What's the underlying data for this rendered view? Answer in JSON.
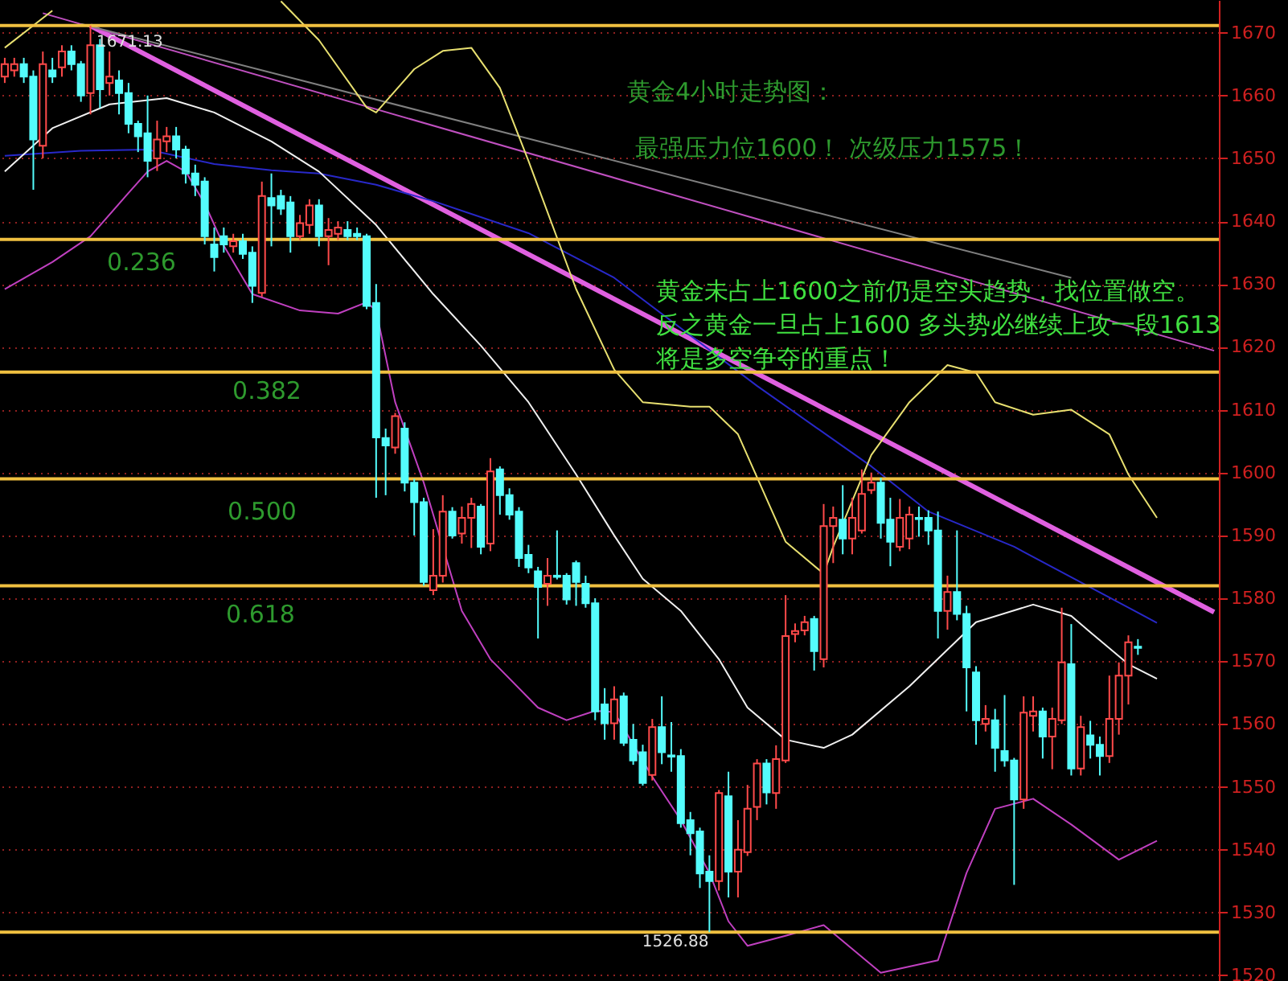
{
  "chart_data": {
    "type": "candlestick",
    "categories": [
      null,
      null,
      null,
      null,
      null,
      null,
      null,
      null,
      null,
      null,
      null,
      null,
      null,
      null,
      null,
      null,
      null,
      null,
      null,
      null,
      null,
      null,
      null,
      null,
      null,
      null,
      null,
      null,
      null,
      null,
      null,
      null,
      null,
      null,
      null,
      null,
      null,
      null,
      null,
      null,
      null,
      null,
      null,
      null,
      null,
      null,
      null,
      null,
      null,
      null,
      null,
      null,
      null,
      null,
      null,
      null,
      null,
      null,
      null,
      null,
      null,
      null,
      null,
      null,
      null,
      null,
      null,
      null,
      null,
      null,
      null,
      null,
      null,
      null,
      null,
      null,
      null,
      null,
      null,
      null,
      null,
      null,
      null,
      null,
      null,
      null,
      null,
      null,
      null,
      null,
      null,
      null,
      null,
      null,
      null,
      null,
      null,
      null,
      null,
      null,
      null,
      null,
      null,
      null,
      null,
      null,
      null,
      null,
      null,
      null,
      null,
      null,
      null,
      null,
      null,
      null,
      null,
      null,
      null,
      null,
      null,
      null,
      null,
      null,
      null,
      null,
      null,
      null
    ],
    "ohlc": [
      [
        1663,
        1666,
        1662,
        1665
      ],
      [
        1664,
        1666,
        1663,
        1665
      ],
      [
        1665,
        1666,
        1662,
        1663
      ],
      [
        1663,
        1664,
        1645,
        1653
      ],
      [
        1652,
        1667,
        1650,
        1665
      ],
      [
        1664,
        1666,
        1662,
        1663
      ],
      [
        1664.5,
        1668,
        1663,
        1667
      ],
      [
        1667,
        1668,
        1664,
        1665
      ],
      [
        1665,
        1665.5,
        1659,
        1660
      ],
      [
        1660.4,
        1671.13,
        1657,
        1668
      ],
      [
        1668,
        1669,
        1658,
        1661
      ],
      [
        1662,
        1667,
        1660,
        1663
      ],
      [
        1662.4,
        1664,
        1657,
        1660.4
      ],
      [
        1660.4,
        1662,
        1654,
        1655.5
      ],
      [
        1655.5,
        1656,
        1651,
        1653.5
      ],
      [
        1654,
        1660,
        1647,
        1649.6
      ],
      [
        1650,
        1656,
        1648,
        1653
      ],
      [
        1652.7,
        1655,
        1651,
        1653.5
      ],
      [
        1653.5,
        1655,
        1650,
        1651.4
      ],
      [
        1651.4,
        1652,
        1646,
        1647.6
      ],
      [
        1647.6,
        1649,
        1644,
        1645.8
      ],
      [
        1646.3,
        1647,
        1636.3,
        1637.6
      ],
      [
        1636.3,
        1639,
        1632,
        1634.3
      ],
      [
        1637.6,
        1639,
        1635,
        1636.3
      ],
      [
        1636,
        1638,
        1635,
        1636.8
      ],
      [
        1636.8,
        1638,
        1634,
        1634.8
      ],
      [
        1635,
        1636,
        1627,
        1629.7
      ],
      [
        1628.6,
        1646.3,
        1628,
        1644
      ],
      [
        1643.7,
        1647.6,
        1636,
        1642.5
      ],
      [
        1644,
        1645,
        1641,
        1642
      ],
      [
        1643,
        1644,
        1635,
        1637.6
      ],
      [
        1637.6,
        1641,
        1637,
        1639.7
      ],
      [
        1639.4,
        1643.5,
        1638,
        1642.5
      ],
      [
        1642.5,
        1643.5,
        1636,
        1637.6
      ],
      [
        1637.6,
        1640.5,
        1633,
        1638.6
      ],
      [
        1638,
        1640,
        1637,
        1639
      ],
      [
        1638.6,
        1640,
        1637,
        1637.6
      ],
      [
        1638,
        1639,
        1637,
        1637.6
      ],
      [
        1637.6,
        1638,
        1626,
        1626.5
      ],
      [
        1627,
        1630,
        1596,
        1605.6
      ],
      [
        1605.5,
        1607,
        1596.4,
        1604.3
      ],
      [
        1604,
        1609.5,
        1603,
        1609
      ],
      [
        1607,
        1608,
        1597,
        1598.4
      ],
      [
        1598.4,
        1599,
        1590,
        1595.3
      ],
      [
        1595.3,
        1596,
        1582,
        1582.6
      ],
      [
        1581.3,
        1591,
        1580.5,
        1583.6
      ],
      [
        1583.6,
        1596.4,
        1582.5,
        1593.8
      ],
      [
        1593.8,
        1594.5,
        1589.5,
        1590
      ],
      [
        1590.3,
        1594.6,
        1588.7,
        1592.8
      ],
      [
        1592.8,
        1596,
        1588,
        1595
      ],
      [
        1594.6,
        1595,
        1587,
        1588.2
      ],
      [
        1588.7,
        1602.3,
        1587.5,
        1600.2
      ],
      [
        1600.5,
        1601,
        1593.3,
        1596.4
      ],
      [
        1596.4,
        1597.5,
        1592.5,
        1593.3
      ],
      [
        1593.8,
        1594.5,
        1585,
        1586.4
      ],
      [
        1586.9,
        1588.5,
        1584,
        1584.9
      ],
      [
        1584.3,
        1585,
        1573.6,
        1581.8
      ],
      [
        1582.3,
        1586.4,
        1578.8,
        1583.6
      ],
      [
        1583.6,
        1590.8,
        1583,
        1583.4
      ],
      [
        1583.6,
        1584,
        1579,
        1579.8
      ],
      [
        1585.6,
        1586,
        1578.8,
        1582.6
      ],
      [
        1582.3,
        1583.6,
        1578.5,
        1579.2
      ],
      [
        1579.2,
        1580,
        1560.6,
        1562
      ],
      [
        1563.1,
        1565.7,
        1557.5,
        1560.1
      ],
      [
        1560.1,
        1566,
        1557.5,
        1563.9
      ],
      [
        1564.4,
        1565,
        1556.5,
        1557
      ],
      [
        1557.5,
        1560,
        1553.5,
        1554.2
      ],
      [
        1555.5,
        1556.7,
        1550.2,
        1550.6
      ],
      [
        1551.9,
        1560.8,
        1551,
        1559.5
      ],
      [
        1559.5,
        1564.4,
        1553.6,
        1555.5
      ],
      [
        1555,
        1560.3,
        1552.4,
        1554.8
      ],
      [
        1554.9,
        1556,
        1543.5,
        1544.2
      ],
      [
        1544.7,
        1546,
        1539.1,
        1542.6
      ],
      [
        1542.9,
        1543.5,
        1533.9,
        1536.2
      ],
      [
        1536.5,
        1539.1,
        1526.88,
        1535
      ],
      [
        1535,
        1549.5,
        1533.5,
        1549
      ],
      [
        1548.5,
        1552.4,
        1532.4,
        1536.5
      ],
      [
        1536.5,
        1544.7,
        1532.4,
        1540
      ],
      [
        1539.6,
        1550.3,
        1539,
        1546.5
      ],
      [
        1546.8,
        1554.4,
        1544.7,
        1553.7
      ],
      [
        1553.7,
        1554.4,
        1547.2,
        1549.1
      ],
      [
        1549,
        1556.6,
        1546.5,
        1554.4
      ],
      [
        1554.2,
        1580.5,
        1553.8,
        1574
      ],
      [
        1574.3,
        1576,
        1573,
        1574.8
      ],
      [
        1574.9,
        1577.2,
        1574.1,
        1576.2
      ],
      [
        1576.7,
        1577.2,
        1568.5,
        1571.6
      ],
      [
        1570.3,
        1595,
        1569,
        1591.5
      ],
      [
        1591.5,
        1594.6,
        1585.6,
        1592.8
      ],
      [
        1592.5,
        1598,
        1587,
        1589.5
      ],
      [
        1589.5,
        1596,
        1587,
        1592.8
      ],
      [
        1590.8,
        1600.5,
        1590.3,
        1596.6
      ],
      [
        1597.2,
        1600,
        1596.6,
        1598.4
      ],
      [
        1598.4,
        1599.2,
        1589.5,
        1592
      ],
      [
        1592.5,
        1596,
        1585.1,
        1589
      ],
      [
        1588.2,
        1595.8,
        1587.5,
        1592.8
      ],
      [
        1589.5,
        1594.6,
        1587.8,
        1593.3
      ],
      [
        1592.8,
        1594.6,
        1589.8,
        1592.6
      ],
      [
        1592.8,
        1594,
        1588.5,
        1590.8
      ],
      [
        1590.8,
        1593.8,
        1573.6,
        1578
      ],
      [
        1578,
        1583.6,
        1575,
        1581
      ],
      [
        1581,
        1590.8,
        1576.5,
        1577.5
      ],
      [
        1577.5,
        1578.8,
        1562,
        1569
      ],
      [
        1568.2,
        1569.2,
        1556.7,
        1560.6
      ],
      [
        1560,
        1563,
        1558.8,
        1560.8
      ],
      [
        1560.6,
        1562.4,
        1552.4,
        1556.2
      ],
      [
        1555.7,
        1564.6,
        1553.2,
        1554.2
      ],
      [
        1554.2,
        1554.6,
        1534.4,
        1548
      ],
      [
        1548,
        1564.4,
        1546.5,
        1561.8
      ],
      [
        1561.3,
        1564.4,
        1558.8,
        1562
      ],
      [
        1562,
        1562.6,
        1554.5,
        1558
      ],
      [
        1558,
        1562.6,
        1552.8,
        1560.8
      ],
      [
        1560.6,
        1578.5,
        1560,
        1569.8
      ],
      [
        1569.5,
        1575.9,
        1551.8,
        1552.9
      ],
      [
        1552.9,
        1561.3,
        1551.8,
        1559.5
      ],
      [
        1558.2,
        1560.5,
        1554.5,
        1556.7
      ],
      [
        1556.7,
        1558,
        1551.8,
        1554.9
      ],
      [
        1554.9,
        1567.7,
        1553.8,
        1560.8
      ],
      [
        1560.8,
        1569.8,
        1558.3,
        1567.7
      ],
      [
        1567.7,
        1574.1,
        1563.1,
        1573
      ],
      [
        1572.3,
        1573.5,
        1571,
        1572.1
      ],
      null,
      null,
      null,
      null,
      null,
      null,
      null,
      null
    ],
    "series": [
      {
        "type": "line",
        "color": "#e060e0",
        "values": [
          null,
          null,
          null,
          null,
          null,
          null,
          null,
          null,
          null,
          1671.1,
          null,
          null,
          null,
          null,
          null,
          null,
          null,
          null,
          null,
          null,
          null,
          null,
          null,
          null,
          null,
          null,
          null,
          null,
          null,
          null,
          null,
          null,
          null,
          null,
          null,
          null,
          null,
          null,
          null,
          null,
          null,
          null,
          null,
          null,
          null,
          null,
          null,
          null,
          null,
          null,
          null,
          null,
          null,
          null,
          null,
          null,
          null,
          null,
          null,
          null,
          null,
          null,
          null,
          null,
          null,
          null,
          null,
          null,
          null,
          null,
          null,
          null,
          null,
          null,
          null,
          null,
          null,
          null,
          null,
          null,
          null,
          null,
          null,
          null,
          null,
          null,
          null,
          null,
          null,
          null,
          null,
          null,
          null,
          null,
          null,
          null,
          null,
          null,
          null,
          null,
          null,
          null,
          null,
          null,
          null,
          null,
          null,
          null,
          null,
          null,
          null,
          null,
          null,
          null,
          null,
          null,
          null,
          null,
          null,
          null,
          null,
          null,
          null,
          null,
          null,
          null,
          null,
          1577.8
        ]
      },
      {
        "type": "line",
        "color": "#c050c0",
        "values": [
          null,
          null,
          null,
          null,
          1673.1,
          null,
          null,
          null,
          null,
          null,
          null,
          null,
          null,
          null,
          null,
          null,
          null,
          null,
          null,
          null,
          null,
          null,
          null,
          null,
          null,
          null,
          null,
          null,
          null,
          null,
          null,
          null,
          null,
          null,
          null,
          null,
          null,
          null,
          null,
          null,
          null,
          null,
          null,
          null,
          null,
          null,
          null,
          null,
          null,
          null,
          null,
          null,
          null,
          null,
          null,
          null,
          null,
          null,
          null,
          null,
          null,
          null,
          null,
          null,
          null,
          null,
          null,
          null,
          null,
          null,
          null,
          null,
          null,
          null,
          null,
          null,
          null,
          null,
          null,
          null,
          null,
          null,
          null,
          null,
          null,
          null,
          null,
          null,
          null,
          null,
          null,
          null,
          null,
          null,
          null,
          null,
          null,
          null,
          null,
          null,
          null,
          null,
          null,
          null,
          null,
          null,
          null,
          null,
          null,
          null,
          null,
          null,
          null,
          null,
          null,
          null,
          null,
          null,
          null,
          null,
          null,
          null,
          null,
          null,
          null,
          null,
          null,
          1619.4
        ]
      },
      {
        "type": "line",
        "color": "#808080",
        "values": [
          null,
          null,
          null,
          null,
          null,
          null,
          null,
          null,
          1671.4,
          null,
          null,
          null,
          null,
          null,
          null,
          null,
          null,
          null,
          null,
          null,
          null,
          null,
          null,
          null,
          null,
          null,
          null,
          null,
          null,
          null,
          null,
          null,
          null,
          null,
          null,
          null,
          null,
          null,
          null,
          null,
          null,
          null,
          null,
          null,
          null,
          null,
          null,
          null,
          null,
          null,
          null,
          null,
          null,
          null,
          null,
          null,
          null,
          null,
          null,
          null,
          null,
          null,
          null,
          null,
          null,
          null,
          null,
          null,
          null,
          null,
          null,
          null,
          null,
          null,
          null,
          null,
          null,
          null,
          null,
          null,
          null,
          null,
          null,
          null,
          null,
          null,
          null,
          null,
          null,
          null,
          null,
          null,
          null,
          null,
          null,
          null,
          null,
          null,
          null,
          null,
          null,
          null,
          null,
          null,
          null,
          null,
          null,
          null,
          null,
          null,
          null,
          null,
          1631,
          null,
          null,
          null,
          null,
          null,
          null,
          null,
          null,
          null,
          null,
          null,
          null,
          null,
          null,
          null
        ]
      },
      {
        "type": "line",
        "color": "#2828c8",
        "values": [
          1650.4,
          null,
          null,
          null,
          null,
          null,
          null,
          null,
          1651.2,
          null,
          null,
          null,
          null,
          null,
          null,
          1651.4,
          null,
          null,
          1650.4,
          null,
          null,
          null,
          1649.1,
          null,
          null,
          null,
          null,
          null,
          1648.1,
          null,
          null,
          null,
          null,
          1647.6,
          null,
          null,
          null,
          null,
          null,
          1645.8,
          null,
          null,
          null,
          null,
          null,
          1643.2,
          null,
          null,
          null,
          null,
          null,
          null,
          null,
          null,
          null,
          1638.1,
          null,
          null,
          null,
          null,
          null,
          null,
          null,
          null,
          1631,
          null,
          null,
          null,
          null,
          null,
          null,
          null,
          null,
          null,
          null,
          null,
          null,
          null,
          null,
          1613.8,
          null,
          null,
          null,
          null,
          null,
          null,
          null,
          null,
          null,
          null,
          null,
          1601,
          null,
          null,
          null,
          null,
          null,
          1593.8,
          null,
          null,
          null,
          null,
          null,
          null,
          null,
          null,
          1588.2,
          null,
          null,
          null,
          null,
          null,
          null,
          null,
          null,
          null,
          null,
          null,
          null,
          null,
          null,
          1576.1,
          null,
          null,
          null,
          null,
          null,
          null
        ]
      },
      {
        "type": "line",
        "color": "#e8e070",
        "values": [
          1667.6,
          null,
          null,
          null,
          null,
          1673.5,
          null,
          null,
          null,
          null,
          null,
          null,
          null,
          null,
          null,
          null,
          null,
          null,
          null,
          null,
          null,
          null,
          null,
          null,
          null,
          null,
          null,
          null,
          null,
          null,
          null,
          null,
          null,
          null,
          null,
          null,
          null,
          null,
          null,
          null,
          null,
          null,
          null,
          null,
          null,
          null,
          null,
          null,
          null,
          null,
          null,
          null,
          null,
          null,
          null,
          null,
          null,
          null,
          null,
          null,
          null,
          null,
          null,
          null,
          null,
          null,
          null,
          null,
          null,
          null,
          null,
          null,
          null,
          null,
          null,
          null,
          null,
          null,
          null,
          null,
          null,
          null,
          null,
          null,
          null,
          null,
          null,
          null,
          null,
          null,
          null,
          null,
          null,
          null,
          null,
          null,
          null,
          null,
          null,
          null,
          null,
          null,
          null,
          null,
          null,
          null,
          null,
          null,
          null,
          null,
          null,
          null,
          null,
          null,
          null,
          null,
          null,
          null,
          null,
          null,
          null,
          null,
          null,
          null,
          null,
          null,
          null,
          null
        ]
      },
      {
        "type": "line",
        "color": "#e8e070",
        "values": [
          null,
          null,
          null,
          null,
          null,
          null,
          null,
          null,
          null,
          null,
          null,
          null,
          null,
          null,
          null,
          null,
          null,
          null,
          null,
          null,
          null,
          null,
          null,
          null,
          null,
          null,
          null,
          null,
          null,
          1675,
          null,
          null,
          null,
          1668.8,
          null,
          null,
          null,
          null,
          1658.1,
          1657.3,
          null,
          null,
          null,
          1664.2,
          null,
          null,
          1667.1,
          null,
          null,
          1667.6,
          null,
          null,
          1661.2,
          null,
          null,
          1649.6,
          null,
          null,
          null,
          null,
          1629.2,
          null,
          null,
          null,
          1616.4,
          null,
          null,
          1611.2,
          null,
          null,
          null,
          null,
          1610.5,
          null,
          1610.5,
          null,
          null,
          1606.1,
          null,
          null,
          null,
          null,
          1589,
          null,
          null,
          null,
          1583.9,
          1588.2,
          null,
          null,
          null,
          1602.8,
          null,
          null,
          null,
          1611.2,
          null,
          null,
          null,
          1617.1,
          null,
          null,
          1615.9,
          null,
          1611.2,
          null,
          null,
          null,
          1609.2,
          null,
          null,
          null,
          1610,
          null,
          null,
          null,
          1606.1,
          null,
          1599.7,
          null,
          null,
          1592.8,
          null,
          null,
          null,
          null,
          null,
          null
        ]
      },
      {
        "type": "line",
        "color": "#f0f0f0",
        "values": [
          1647.9,
          null,
          null,
          null,
          null,
          1654.8,
          null,
          null,
          null,
          null,
          null,
          1658.6,
          null,
          null,
          null,
          null,
          null,
          1659.6,
          null,
          null,
          null,
          null,
          1657.3,
          null,
          null,
          null,
          null,
          null,
          1652.7,
          null,
          null,
          null,
          null,
          1647.9,
          null,
          null,
          null,
          null,
          null,
          1639.4,
          null,
          null,
          null,
          null,
          null,
          1628.4,
          null,
          null,
          null,
          null,
          1620.2,
          null,
          null,
          null,
          null,
          1611.2,
          null,
          null,
          null,
          null,
          1599.7,
          null,
          null,
          null,
          1590,
          null,
          null,
          1583.1,
          null,
          null,
          null,
          1578,
          null,
          null,
          null,
          1570.3,
          null,
          null,
          1562.6,
          null,
          null,
          null,
          1557.5,
          null,
          null,
          null,
          1556.2,
          null,
          null,
          1558.3,
          null,
          null,
          null,
          null,
          null,
          1566,
          null,
          null,
          null,
          null,
          null,
          null,
          1576.2,
          null,
          null,
          null,
          null,
          null,
          1579,
          null,
          null,
          null,
          1577.2,
          null,
          1574.6,
          null,
          null,
          null,
          1569.5,
          null,
          null,
          1567.2,
          null,
          null,
          null,
          null,
          null,
          null
        ]
      },
      {
        "type": "line",
        "color": "#c040c0",
        "values": [
          1629.2,
          null,
          null,
          null,
          null,
          1633.5,
          null,
          null,
          null,
          1637.6,
          null,
          null,
          null,
          1644.5,
          null,
          1647.9,
          null,
          1649.6,
          null,
          1647.9,
          null,
          1642.8,
          null,
          1636.1,
          null,
          null,
          1628.4,
          null,
          null,
          null,
          null,
          1625.8,
          null,
          null,
          null,
          1625.3,
          null,
          null,
          1627.1,
          1625.8,
          null,
          1611.2,
          null,
          null,
          1598.4,
          null,
          null,
          null,
          1578,
          null,
          null,
          1570.3,
          null,
          null,
          null,
          null,
          1562.6,
          null,
          null,
          1560.6,
          null,
          null,
          1562.1,
          null,
          1561.9,
          null,
          null,
          null,
          1551.6,
          null,
          null,
          1544.7,
          null,
          null,
          1536.3,
          null,
          1528.6,
          null,
          1524.7,
          null,
          null,
          null,
          1526.3,
          null,
          null,
          null,
          1528,
          null,
          null,
          null,
          null,
          null,
          1520.4,
          null,
          null,
          null,
          null,
          null,
          1522.4,
          null,
          null,
          1536.3,
          null,
          null,
          1546.5,
          null,
          null,
          null,
          1548.1,
          null,
          null,
          null,
          1544,
          null,
          null,
          null,
          null,
          1538.4,
          null,
          null,
          null,
          1541.4,
          null,
          null,
          null,
          null,
          null,
          null
        ]
      }
    ],
    "ref_lines": [
      {
        "axis": "y",
        "value": 1671.13,
        "color": "#f0c040"
      },
      {
        "axis": "y",
        "value": 1637.09,
        "color": "#f0c040"
      },
      {
        "axis": "y",
        "value": 1616.0,
        "color": "#f0c040"
      },
      {
        "axis": "y",
        "value": 1599.0,
        "color": "#f0c040"
      },
      {
        "axis": "y",
        "value": 1582.0,
        "color": "#f0c040"
      },
      {
        "axis": "y",
        "value": 1526.88,
        "color": "#f0c040"
      }
    ],
    "annotations": [
      {
        "text": "1671.13",
        "y": 1671.13
      },
      {
        "text": "1526.88",
        "y": 1526.88
      },
      "0.236",
      "0.382",
      "0.500",
      "0.618",
      "黄金4小时走势图：",
      "最强压力位1600！ 次级压力1575！",
      "黄金未占上1600之前仍是空头趋势，找位置做空。",
      "反之黄金一旦占上1600 多头势必继续上攻一段1613",
      "将是多空争夺的重点！"
    ],
    "ylim": [
      1519.1,
      1675.2
    ],
    "yticks": [
      1520,
      1530,
      1540,
      1550,
      1560,
      1570,
      1580,
      1590,
      1600,
      1610,
      1620,
      1630,
      1640,
      1650,
      1660,
      1670
    ],
    "grid": "y",
    "tick_labels": "y"
  }
}
